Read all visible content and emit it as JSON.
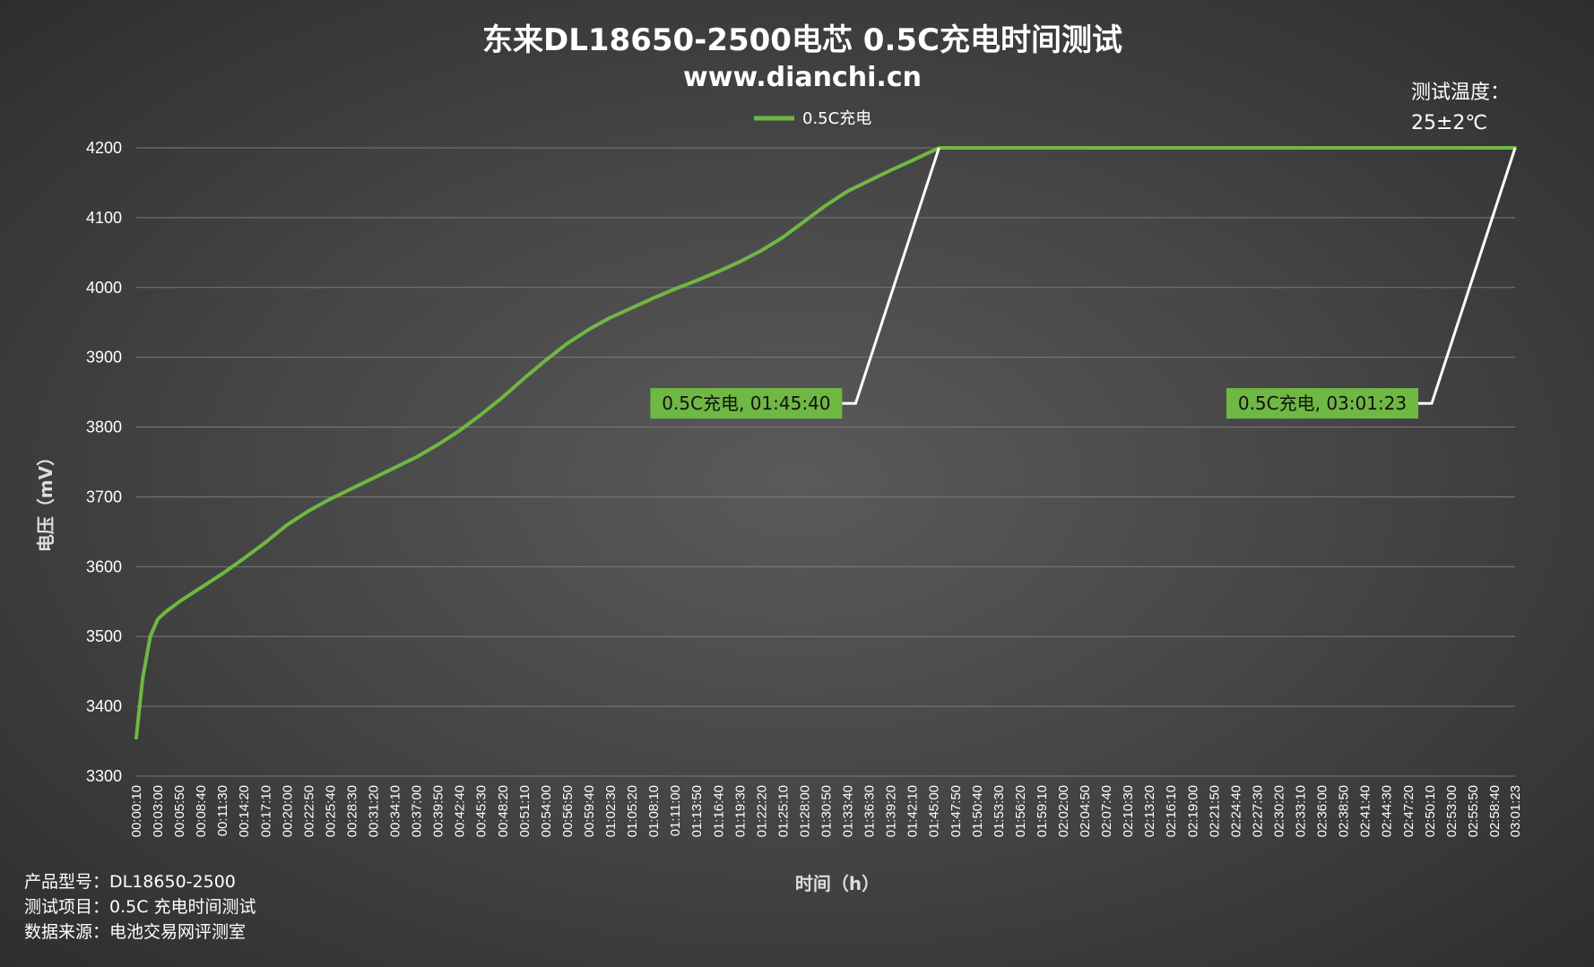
{
  "chart_data": {
    "type": "line",
    "title": "东来DL18650-2500电芯 0.5C充电时间测试",
    "subtitle": "www.dianchi.cn",
    "xlabel": "时间（h）",
    "ylabel": "电压（mV）",
    "ylim": [
      3300,
      4200
    ],
    "y_ticks": [
      3300,
      3400,
      3500,
      3600,
      3700,
      3800,
      3900,
      4000,
      4100,
      4200
    ],
    "grid": true,
    "legend_position": "top-center",
    "x_tick_labels": [
      "00:00:10",
      "00:03:00",
      "00:05:50",
      "00:08:40",
      "00:11:30",
      "00:14:20",
      "00:17:10",
      "00:20:00",
      "00:22:50",
      "00:25:40",
      "00:28:30",
      "00:31:20",
      "00:34:10",
      "00:37:00",
      "00:39:50",
      "00:42:40",
      "00:45:30",
      "00:48:20",
      "00:51:10",
      "00:54:00",
      "00:56:50",
      "00:59:40",
      "01:02:30",
      "01:05:20",
      "01:08:10",
      "01:11:00",
      "01:13:50",
      "01:16:40",
      "01:19:30",
      "01:22:20",
      "01:25:10",
      "01:28:00",
      "01:30:50",
      "01:33:40",
      "01:36:30",
      "01:39:20",
      "01:42:10",
      "01:45:00",
      "01:47:50",
      "01:50:40",
      "01:53:30",
      "01:56:20",
      "01:59:10",
      "02:02:00",
      "02:04:50",
      "02:07:40",
      "02:10:30",
      "02:13:20",
      "02:16:10",
      "02:19:00",
      "02:21:50",
      "02:24:40",
      "02:27:30",
      "02:30:20",
      "02:33:10",
      "02:36:00",
      "02:38:50",
      "02:41:40",
      "02:44:30",
      "02:47:20",
      "02:50:10",
      "02:53:00",
      "02:55:50",
      "02:58:40",
      "03:01:23"
    ],
    "series": [
      {
        "name": "0.5C充电",
        "color": "#6fb843",
        "x": [
          "00:00:10",
          "00:01:00",
          "00:02:00",
          "00:03:00",
          "00:04:00",
          "00:05:50",
          "00:08:40",
          "00:11:30",
          "00:14:20",
          "00:17:10",
          "00:20:00",
          "00:22:50",
          "00:25:40",
          "00:28:30",
          "00:31:20",
          "00:34:10",
          "00:37:00",
          "00:39:50",
          "00:42:40",
          "00:45:30",
          "00:48:20",
          "00:51:10",
          "00:54:00",
          "00:56:50",
          "00:59:40",
          "01:02:30",
          "01:05:20",
          "01:08:10",
          "01:11:00",
          "01:13:50",
          "01:16:40",
          "01:19:30",
          "01:22:20",
          "01:25:10",
          "01:28:00",
          "01:30:50",
          "01:33:40",
          "01:36:30",
          "01:39:20",
          "01:42:10",
          "01:45:40",
          "01:47:50",
          "02:00:00",
          "02:30:00",
          "03:01:23"
        ],
        "values": [
          3355,
          3440,
          3500,
          3525,
          3535,
          3550,
          3570,
          3590,
          3612,
          3635,
          3660,
          3680,
          3697,
          3712,
          3727,
          3742,
          3757,
          3775,
          3795,
          3818,
          3843,
          3870,
          3896,
          3920,
          3940,
          3957,
          3971,
          3985,
          3998,
          4010,
          4023,
          4037,
          4053,
          4072,
          4095,
          4118,
          4138,
          4153,
          4168,
          4182,
          4200,
          4200,
          4200,
          4200,
          4200
        ]
      }
    ],
    "annotations": [
      {
        "text": "0.5C充电, 01:45:40",
        "x": "01:45:40",
        "y": 4200,
        "bg": "#6fb843"
      },
      {
        "text": "0.5C充电, 03:01:23",
        "x": "03:01:23",
        "y": 4200,
        "bg": "#6fb843"
      }
    ],
    "temperature_note": [
      "测试温度：",
      "25±2℃"
    ]
  },
  "footer": {
    "model": "产品型号：DL18650-2500",
    "item": "测试项目：0.5C 充电时间测试",
    "source": "数据来源：电池交易网评测室"
  }
}
